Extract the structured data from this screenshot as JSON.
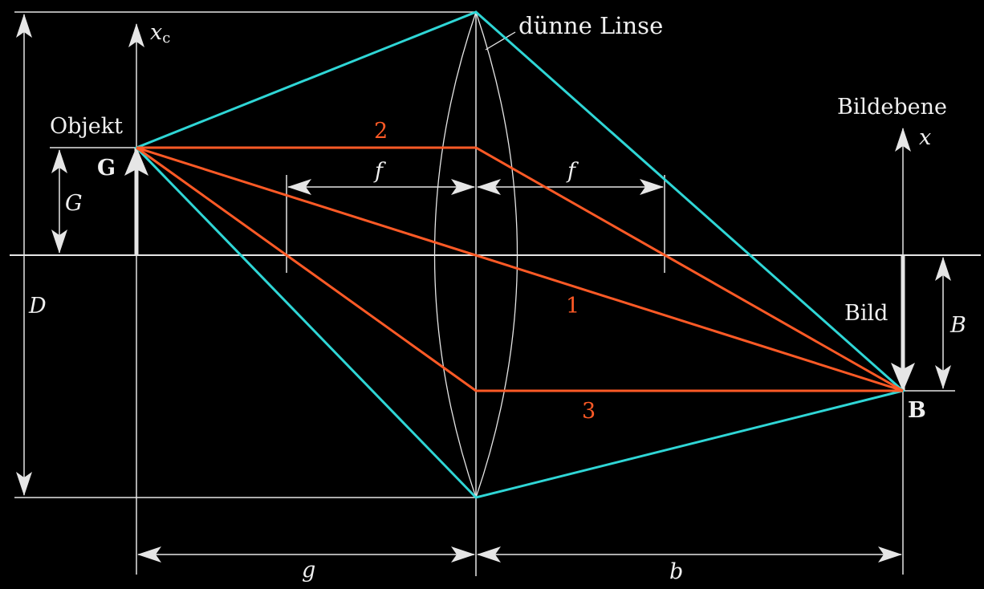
{
  "colors": {
    "background": "#000000",
    "line": "#e6e6e6",
    "ray": "#ff5a26",
    "beam": "#2fd6d6",
    "text": "#f0f0f0"
  },
  "labels": {
    "lens": "dünne Linse",
    "object": "Objekt",
    "object_point": "G",
    "object_size": "G",
    "xc_main": "x",
    "xc_sub": "c",
    "image_plane": "Bildebene",
    "image_axis": "x",
    "image": "Bild",
    "image_point": "B",
    "image_size": "B",
    "aperture": "D",
    "focal_left": "f",
    "focal_right": "f",
    "object_distance": "g",
    "image_distance": "b",
    "ray_1": "1",
    "ray_2": "2",
    "ray_3": "3"
  },
  "icons": {
    "arrow": "arrowhead-icon"
  }
}
